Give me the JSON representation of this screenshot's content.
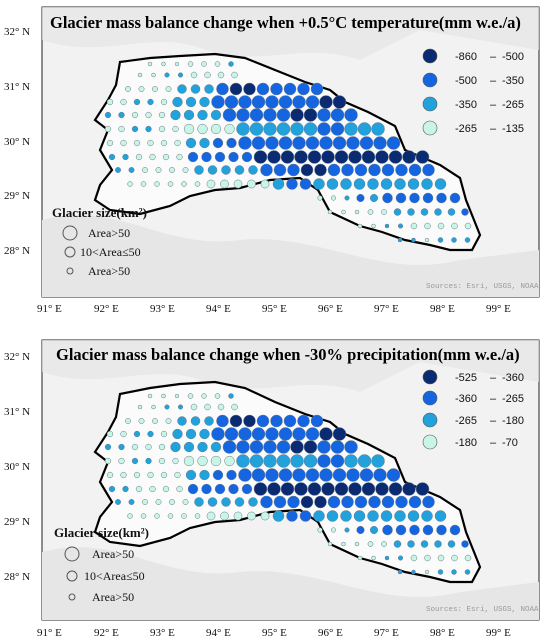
{
  "panels": [
    {
      "id": "temperature",
      "title": "Glacier mass balance change when +0.5°C temperature(mm w.e./a)",
      "legend": [
        {
          "from": "-860",
          "to": "-500",
          "color": "#0a2a72"
        },
        {
          "from": "-500",
          "to": "-350",
          "color": "#1565e0"
        },
        {
          "from": "-350",
          "to": "-265",
          "color": "#22a2dc"
        },
        {
          "from": "-265",
          "to": "-135",
          "color": "#c8f5e6"
        }
      ],
      "size_legend": {
        "title": "Glacier size(km²)",
        "items": [
          "Area>50",
          "10<Area≤50",
          "Area>50"
        ]
      },
      "lat_labels": [
        "32° N",
        "31° N",
        "30° N",
        "29° N",
        "28° N"
      ],
      "lon_labels": [
        "91° E",
        "92° E",
        "93° E",
        "94° E",
        "95° E",
        "96° E",
        "97° E",
        "98° E",
        "99° E"
      ],
      "credit": "Sources: Esri, USGS, NOAA"
    },
    {
      "id": "precipitation",
      "title": "Glacier mass balance change when -30% precipitation(mm w.e./a)",
      "legend": [
        {
          "from": "-525",
          "to": "-360",
          "color": "#0a2a72"
        },
        {
          "from": "-360",
          "to": "-265",
          "color": "#1565e0"
        },
        {
          "from": "-265",
          "to": "-180",
          "color": "#22a2dc"
        },
        {
          "from": "-180",
          "to": "-70",
          "color": "#c8f5e6"
        }
      ],
      "size_legend": {
        "title": "Glacier size(km²)",
        "items": [
          "Area>50",
          "10<Area≤50",
          "Area>50"
        ]
      },
      "lat_labels": [
        "32° N",
        "31° N",
        "30° N",
        "29° N",
        "28° N"
      ],
      "lon_labels": [
        "91° E",
        "92° E",
        "93° E",
        "94° E",
        "95° E",
        "96° E",
        "97° E",
        "98° E",
        "99° E"
      ],
      "credit": "Sources: Esri, USGS, NOAA"
    }
  ]
}
